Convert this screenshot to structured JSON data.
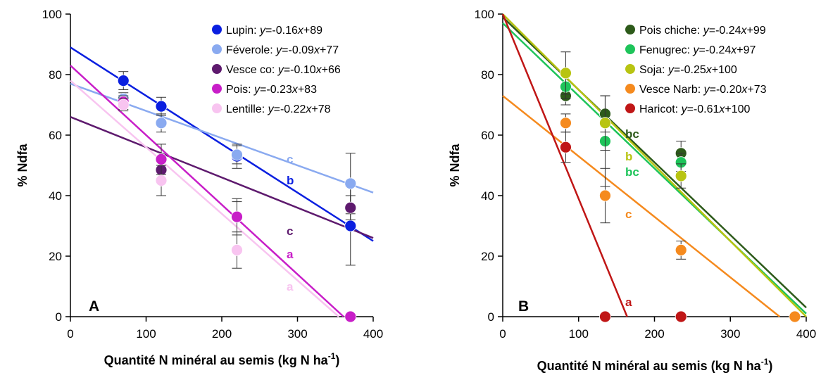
{
  "chart_data": [
    {
      "type": "scatter",
      "panel_label": "A",
      "xlabel": "Quantité N minéral au semis (kg N ha",
      "xlabel_sup": "-1",
      "xlabel_end": ")",
      "ylabel": "% Ndfa",
      "xlim": [
        0,
        400
      ],
      "ylim": [
        0,
        100
      ],
      "xticks": [
        "0",
        "100",
        "200",
        "300",
        "400"
      ],
      "yticks": [
        "0",
        "20",
        "40",
        "60",
        "80",
        "100"
      ],
      "legend_position": "top-right",
      "series": [
        {
          "name": "Lupin",
          "equation": "y=-0.16x+89",
          "color": "#0a1fe0",
          "slope": -0.16,
          "intercept": 89,
          "points": [
            {
              "x": 70,
              "y": 78,
              "err": 3
            },
            {
              "x": 120,
              "y": 69.5,
              "err": 3
            },
            {
              "x": 220,
              "y": 53,
              "err": 4
            },
            {
              "x": 370,
              "y": 30,
              "err": 13
            }
          ],
          "letter": "b"
        },
        {
          "name": "Féverole",
          "equation": "y=-0.09x+77",
          "color": "#8aaaf0",
          "slope": -0.09,
          "intercept": 77,
          "points": [
            {
              "x": 70,
              "y": 72,
              "err": 2
            },
            {
              "x": 120,
              "y": 64,
              "err": 3
            },
            {
              "x": 220,
              "y": 53.5,
              "err": 3
            },
            {
              "x": 370,
              "y": 44,
              "err": 10
            }
          ],
          "letter": "c"
        },
        {
          "name": "Vesce co",
          "equation": "y=-0.10x+66",
          "color": "#5e1a6e",
          "slope": -0.1,
          "intercept": 66,
          "points": [
            {
              "x": 70,
              "y": 70.5,
              "err": 2
            },
            {
              "x": 120,
              "y": 48.5,
              "err": 3
            },
            {
              "x": 220,
              "y": 33,
              "err": 6
            },
            {
              "x": 370,
              "y": 36,
              "err": 4
            }
          ],
          "letter": "c"
        },
        {
          "name": "Pois",
          "equation": "y=-0.23x+83",
          "color": "#c81ec8",
          "slope": -0.23,
          "intercept": 83,
          "points": [
            {
              "x": 70,
              "y": 71,
              "err": 2
            },
            {
              "x": 120,
              "y": 52,
              "err": 5
            },
            {
              "x": 220,
              "y": 33,
              "err": 5
            },
            {
              "x": 370,
              "y": 0,
              "err": 0
            }
          ],
          "letter": "a"
        },
        {
          "name": "Lentille",
          "equation": "y=-0.22x+78",
          "color": "#f8c4f0",
          "slope": -0.22,
          "intercept": 78,
          "points": [
            {
              "x": 70,
              "y": 70,
              "err": 2
            },
            {
              "x": 120,
              "y": 45,
              "err": 5
            },
            {
              "x": 220,
              "y": 22,
              "err": 6
            }
          ],
          "letter": "a"
        }
      ]
    },
    {
      "type": "scatter",
      "panel_label": "B",
      "xlabel": "Quantité N minéral au semis (kg N ha",
      "xlabel_sup": "-1",
      "xlabel_end": ")",
      "ylabel": "% Ndfa",
      "xlim": [
        0,
        400
      ],
      "ylim": [
        0,
        100
      ],
      "xticks": [
        "0",
        "100",
        "200",
        "300",
        "400"
      ],
      "yticks": [
        "0",
        "20",
        "40",
        "60",
        "80",
        "100"
      ],
      "legend_position": "top-right",
      "series": [
        {
          "name": "Pois chiche",
          "equation": "y=-0.24x+99",
          "color": "#2d5a1a",
          "slope": -0.24,
          "intercept": 99,
          "points": [
            {
              "x": 83,
              "y": 73,
              "err": 3
            },
            {
              "x": 135,
              "y": 67,
              "err": 6
            },
            {
              "x": 235,
              "y": 54,
              "err": 4
            }
          ],
          "letter": "bc"
        },
        {
          "name": "Fenugrec",
          "equation": "y=-0.24x+97",
          "color": "#1ec45a",
          "slope": -0.24,
          "intercept": 97,
          "points": [
            {
              "x": 83,
              "y": 76,
              "err": 4
            },
            {
              "x": 135,
              "y": 58,
              "err": 15
            },
            {
              "x": 235,
              "y": 51,
              "err": 3
            }
          ],
          "letter": "bc"
        },
        {
          "name": "Soja",
          "equation": "y=-0.25x+100",
          "color": "#b8c412",
          "slope": -0.25,
          "intercept": 100,
          "points": [
            {
              "x": 83,
              "y": 80.5,
              "err": 7
            },
            {
              "x": 135,
              "y": 64,
              "err": 9
            },
            {
              "x": 235,
              "y": 46.5,
              "err": 4
            }
          ],
          "letter": "b"
        },
        {
          "name": "Vesce Narb",
          "equation": "y=-0.20x+73",
          "color": "#f58a1e",
          "slope": -0.2,
          "intercept": 73,
          "points": [
            {
              "x": 83,
              "y": 64,
              "err": 3
            },
            {
              "x": 135,
              "y": 40,
              "err": 9
            },
            {
              "x": 235,
              "y": 22,
              "err": 3
            },
            {
              "x": 385,
              "y": 0,
              "err": 0
            }
          ],
          "letter": "c"
        },
        {
          "name": "Haricot",
          "equation": "y=-0.61x+100",
          "color": "#c01616",
          "slope": -0.61,
          "intercept": 100,
          "points": [
            {
              "x": 83,
              "y": 56,
              "err": 5
            },
            {
              "x": 135,
              "y": 0,
              "err": 0
            },
            {
              "x": 235,
              "y": 0,
              "err": 0
            }
          ],
          "letter": "a"
        }
      ]
    }
  ]
}
